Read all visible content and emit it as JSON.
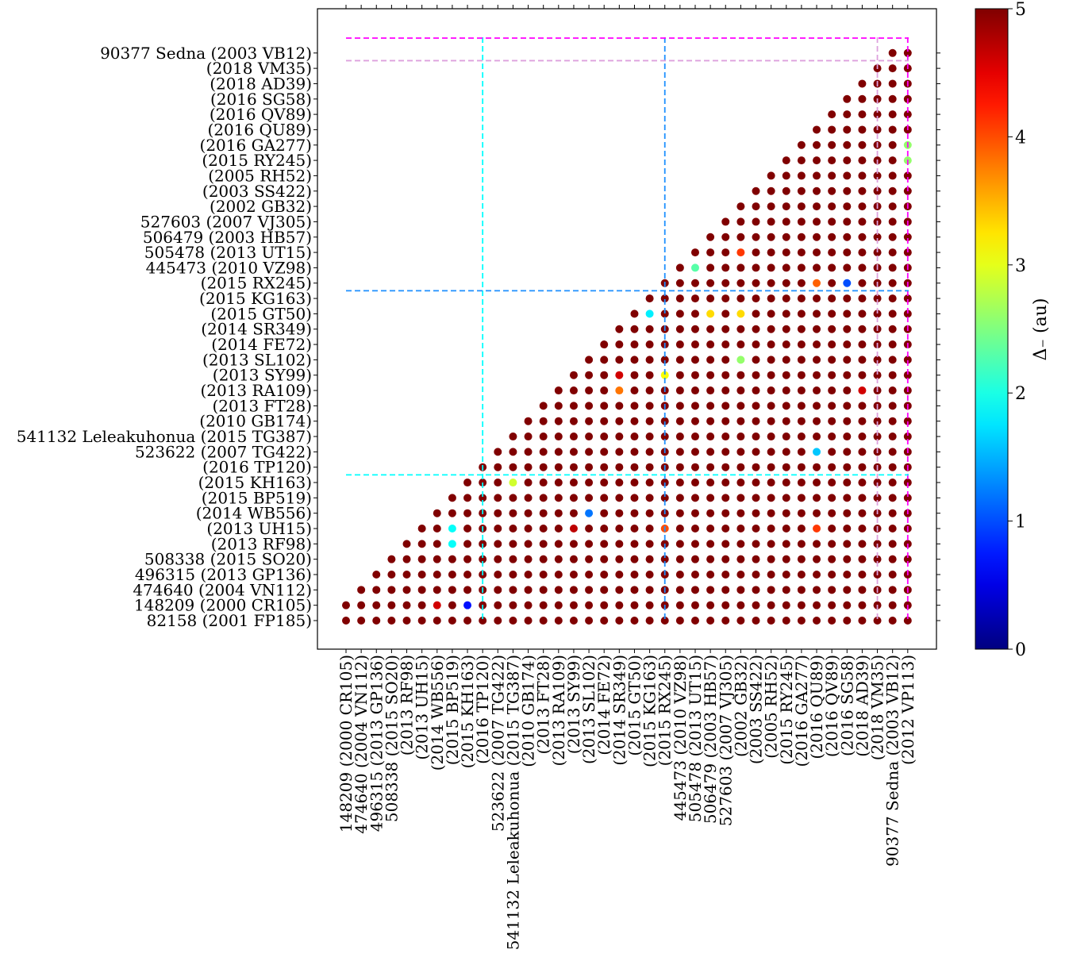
{
  "chart_data": {
    "type": "heatmap",
    "title": "",
    "xlabel": "",
    "ylabel": "",
    "x_tick_labels": [
      "148209 (2000 CR105)",
      "474640 (2004 VN112)",
      "496315 (2013 GP136)",
      "508338 (2015 SO20)",
      "(2013 RF98)",
      "(2013 UH15)",
      "(2014 WB556)",
      "(2015 BP519)",
      "(2015 KH163)",
      "(2016 TP120)",
      "523622 (2007 TG422)",
      "541132 Leleakuhonua (2015 TG387)",
      "(2010 GB174)",
      "(2013 FT28)",
      "(2013 RA109)",
      "(2013 SY99)",
      "(2013 SL102)",
      "(2014 FE72)",
      "(2014 SR349)",
      "(2015 GT50)",
      "(2015 KG163)",
      "(2015 RX245)",
      "445473 (2010 VZ98)",
      "505478 (2013 UT15)",
      "506479 (2003 HB57)",
      "527603 (2007 VJ305)",
      "(2002 GB32)",
      "(2003 SS422)",
      "(2005 RH52)",
      "(2015 RY245)",
      "(2016 GA277)",
      "(2016 QU89)",
      "(2016 QV89)",
      "(2016 SG58)",
      "(2018 AD39)",
      "(2018 VM35)",
      "90377 Sedna (2003 VB12)",
      "(2012 VP113)"
    ],
    "y_tick_labels": [
      "82158 (2001 FP185)",
      "148209 (2000 CR105)",
      "474640 (2004 VN112)",
      "496315 (2013 GP136)",
      "508338 (2015 SO20)",
      "(2013 RF98)",
      "(2013 UH15)",
      "(2014 WB556)",
      "(2015 BP519)",
      "(2015 KH163)",
      "(2016 TP120)",
      "523622 (2007 TG422)",
      "541132 Leleakuhonua (2015 TG387)",
      "(2010 GB174)",
      "(2013 FT28)",
      "(2013 RA109)",
      "(2013 SY99)",
      "(2013 SL102)",
      "(2014 FE72)",
      "(2014 SR349)",
      "(2015 GT50)",
      "(2015 KG163)",
      "(2015 RX245)",
      "445473 (2010 VZ98)",
      "505478 (2013 UT15)",
      "506479 (2003 HB57)",
      "527603 (2007 VJ305)",
      "(2002 GB32)",
      "(2003 SS422)",
      "(2005 RH52)",
      "(2015 RY245)",
      "(2016 GA277)",
      "(2016 QU89)",
      "(2016 QV89)",
      "(2016 SG58)",
      "(2018 AD39)",
      "(2018 VM35)",
      "90377 Sedna (2003 VB12)"
    ],
    "grid": false,
    "default_value": 5,
    "special_values": [
      [
        1,
        6,
        4.6
      ],
      [
        1,
        8,
        0.7
      ],
      [
        5,
        7,
        1.9
      ],
      [
        6,
        7,
        1.9
      ],
      [
        6,
        15,
        4.7
      ],
      [
        6,
        21,
        4.0
      ],
      [
        6,
        31,
        4.1
      ],
      [
        7,
        16,
        1.2
      ],
      [
        9,
        11,
        2.9
      ],
      [
        11,
        31,
        1.6
      ],
      [
        15,
        18,
        3.8
      ],
      [
        15,
        34,
        4.6
      ],
      [
        16,
        18,
        4.6
      ],
      [
        16,
        21,
        3.1
      ],
      [
        17,
        26,
        2.6
      ],
      [
        20,
        20,
        1.8
      ],
      [
        20,
        24,
        3.3
      ],
      [
        20,
        26,
        3.3
      ],
      [
        22,
        31,
        3.9
      ],
      [
        22,
        33,
        1.0
      ],
      [
        23,
        23,
        2.3
      ],
      [
        24,
        26,
        4.1
      ],
      [
        30,
        37,
        2.6
      ],
      [
        31,
        37,
        2.6
      ]
    ],
    "reference_lines": [
      {
        "axis": "x",
        "index": 9,
        "color": "#00ffff",
        "y_extent": "top"
      },
      {
        "axis": "x",
        "index": 21,
        "color": "#1e90ff",
        "y_extent": "top"
      },
      {
        "axis": "x",
        "index": 35,
        "color": "#dda0dd",
        "y_extent": "top"
      },
      {
        "axis": "x",
        "index": 37,
        "color": "#ff00ff",
        "y_extent": "top"
      },
      {
        "axis": "y",
        "index": 10,
        "color": "#00ffff"
      },
      {
        "axis": "y",
        "index": 22,
        "color": "#1e90ff"
      },
      {
        "axis": "y",
        "index": 37,
        "color": "#dda0dd"
      },
      {
        "axis": "y",
        "index": 38,
        "color": "#ff00ff"
      }
    ],
    "colorbar": {
      "label": "Δ₋ (au)",
      "colormap": "jet",
      "range": [
        0,
        5
      ],
      "ticks": [
        "0",
        "1",
        "2",
        "3",
        "4",
        "5"
      ]
    }
  }
}
